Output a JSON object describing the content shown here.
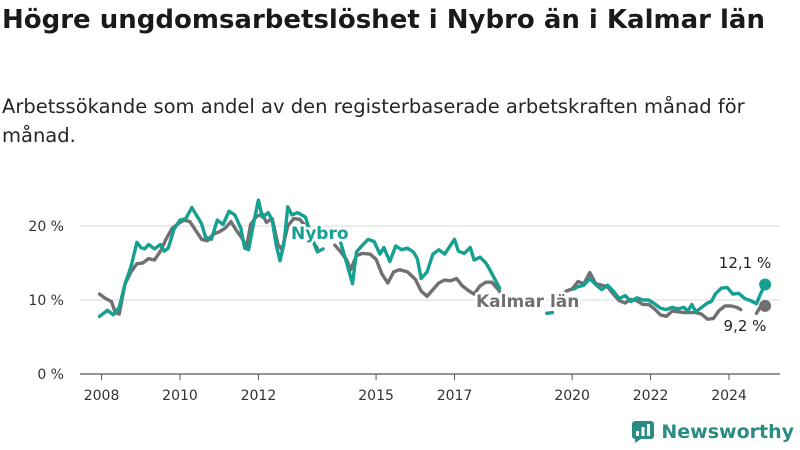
{
  "title": "Högre ungdomsarbetslöshet i Nybro än i Kalmar län",
  "subtitle": "Arbetssökande som andel av den registerbaserade arbetskraften månad för månad.",
  "brand": "Newsworthy",
  "colors": {
    "nybro": "#16a091",
    "kalmar": "#707070",
    "grid": "#d9d9d9",
    "axis": "#555555"
  },
  "chart_data": {
    "type": "line",
    "x_ticks": [
      "2008",
      "2010",
      "2012",
      "2015",
      "2017",
      "2020",
      "2022",
      "2024"
    ],
    "x_tick_values": [
      2008,
      2010,
      2012,
      2015,
      2017,
      2020,
      2022,
      2024
    ],
    "y_ticks": [
      "0 %",
      "10 %",
      "20 %"
    ],
    "y_tick_values": [
      0,
      10,
      20
    ],
    "xlim": [
      2007.45,
      2025.3
    ],
    "ylim": [
      0,
      20
    ],
    "grid": true,
    "series": [
      {
        "name": "Nybro",
        "end_label": "12,1 %",
        "points": [
          [
            2007.95,
            7.8
          ],
          [
            2008.15,
            8.6
          ],
          [
            2008.3,
            8.0
          ],
          [
            2008.45,
            9.0
          ],
          [
            2008.6,
            12.2
          ],
          [
            2008.75,
            14.5
          ],
          [
            2008.9,
            17.8
          ],
          [
            2009.0,
            17.1
          ],
          [
            2009.1,
            16.9
          ],
          [
            2009.2,
            17.5
          ],
          [
            2009.35,
            16.9
          ],
          [
            2009.5,
            17.5
          ],
          [
            2009.6,
            16.6
          ],
          [
            2009.7,
            17.0
          ],
          [
            2009.85,
            19.6
          ],
          [
            2010.0,
            20.8
          ],
          [
            2010.15,
            21.0
          ],
          [
            2010.3,
            22.5
          ],
          [
            2010.45,
            21.2
          ],
          [
            2010.55,
            20.3
          ],
          [
            2010.65,
            18.5
          ],
          [
            2010.8,
            18.2
          ],
          [
            2010.95,
            20.8
          ],
          [
            2011.1,
            20.2
          ],
          [
            2011.25,
            22.0
          ],
          [
            2011.4,
            21.5
          ],
          [
            2011.55,
            19.7
          ],
          [
            2011.65,
            17.0
          ],
          [
            2011.75,
            16.8
          ],
          [
            2011.9,
            21.0
          ],
          [
            2012.0,
            23.5
          ],
          [
            2012.1,
            21.2
          ],
          [
            2012.25,
            21.8
          ],
          [
            2012.35,
            20.8
          ],
          [
            2012.45,
            17.5
          ],
          [
            2012.55,
            15.3
          ],
          [
            2012.65,
            17.6
          ],
          [
            2012.75,
            22.6
          ],
          [
            2012.85,
            21.5
          ],
          [
            2013.0,
            21.8
          ],
          [
            2013.1,
            21.5
          ],
          [
            2013.2,
            21.2
          ],
          [
            2013.35,
            18.6
          ],
          [
            2013.5,
            16.5
          ],
          [
            2013.65,
            16.9
          ],
          null,
          [
            2014.1,
            17.7
          ],
          [
            2014.25,
            15.0
          ],
          [
            2014.4,
            12.2
          ],
          [
            2014.5,
            16.5
          ],
          [
            2014.65,
            17.4
          ],
          [
            2014.8,
            18.2
          ],
          [
            2014.95,
            17.9
          ],
          [
            2015.1,
            16.2
          ],
          [
            2015.2,
            17.1
          ],
          [
            2015.35,
            15.2
          ],
          [
            2015.5,
            17.3
          ],
          [
            2015.65,
            16.8
          ],
          [
            2015.8,
            17.0
          ],
          [
            2015.95,
            16.5
          ],
          [
            2016.05,
            15.6
          ],
          [
            2016.15,
            12.9
          ],
          [
            2016.3,
            13.8
          ],
          [
            2016.45,
            16.2
          ],
          [
            2016.6,
            16.8
          ],
          [
            2016.75,
            16.2
          ],
          [
            2016.9,
            17.4
          ],
          [
            2017.0,
            18.2
          ],
          [
            2017.1,
            16.6
          ],
          [
            2017.25,
            16.3
          ],
          [
            2017.4,
            17.1
          ],
          [
            2017.5,
            15.4
          ],
          [
            2017.65,
            15.8
          ],
          [
            2017.8,
            15.0
          ],
          [
            2017.9,
            14.1
          ],
          [
            2018.05,
            12.6
          ],
          [
            2018.15,
            11.6
          ],
          null,
          [
            2019.35,
            8.2
          ],
          [
            2019.5,
            8.3
          ],
          null,
          [
            2020.05,
            11.5
          ],
          [
            2020.15,
            11.8
          ],
          [
            2020.3,
            12.0
          ],
          [
            2020.45,
            12.9
          ],
          [
            2020.6,
            12.1
          ],
          [
            2020.75,
            11.4
          ],
          [
            2020.9,
            12.0
          ],
          [
            2021.05,
            11.2
          ],
          [
            2021.2,
            10.2
          ],
          [
            2021.35,
            10.6
          ],
          [
            2021.5,
            9.8
          ],
          [
            2021.65,
            10.3
          ],
          [
            2021.8,
            10.0
          ],
          [
            2021.95,
            10.0
          ],
          [
            2022.1,
            9.5
          ],
          [
            2022.25,
            8.9
          ],
          [
            2022.4,
            8.7
          ],
          [
            2022.55,
            9.0
          ],
          [
            2022.7,
            8.8
          ],
          [
            2022.85,
            9.0
          ],
          [
            2022.95,
            8.5
          ],
          [
            2023.05,
            9.4
          ],
          [
            2023.15,
            8.4
          ],
          [
            2023.3,
            9.0
          ],
          [
            2023.45,
            9.6
          ],
          [
            2023.55,
            9.8
          ],
          [
            2023.65,
            10.8
          ],
          [
            2023.8,
            11.6
          ],
          [
            2023.95,
            11.7
          ],
          [
            2024.1,
            10.8
          ],
          [
            2024.25,
            10.9
          ],
          [
            2024.4,
            10.2
          ],
          [
            2024.55,
            9.9
          ],
          [
            2024.7,
            9.5
          ],
          [
            2024.8,
            10.8
          ],
          [
            2024.92,
            12.1
          ]
        ]
      },
      {
        "name": "Kalmar län",
        "end_label": "9,2 %",
        "points": [
          [
            2007.95,
            10.8
          ],
          [
            2008.1,
            10.2
          ],
          [
            2008.25,
            9.8
          ],
          [
            2008.35,
            8.3
          ],
          [
            2008.45,
            8.1
          ],
          [
            2008.6,
            12.2
          ],
          [
            2008.75,
            13.8
          ],
          [
            2008.9,
            14.9
          ],
          [
            2009.05,
            15.0
          ],
          [
            2009.2,
            15.6
          ],
          [
            2009.35,
            15.4
          ],
          [
            2009.5,
            16.6
          ],
          [
            2009.65,
            18.3
          ],
          [
            2009.8,
            19.7
          ],
          [
            2009.95,
            20.3
          ],
          [
            2010.1,
            20.8
          ],
          [
            2010.25,
            20.6
          ],
          [
            2010.4,
            19.4
          ],
          [
            2010.55,
            18.2
          ],
          [
            2010.7,
            18.0
          ],
          [
            2010.85,
            18.9
          ],
          [
            2011.0,
            19.2
          ],
          [
            2011.15,
            19.7
          ],
          [
            2011.3,
            20.6
          ],
          [
            2011.45,
            19.3
          ],
          [
            2011.55,
            18.6
          ],
          [
            2011.7,
            17.2
          ],
          [
            2011.8,
            20.2
          ],
          [
            2011.95,
            21.3
          ],
          [
            2012.1,
            21.6
          ],
          [
            2012.2,
            20.5
          ],
          [
            2012.35,
            21.0
          ],
          [
            2012.5,
            17.5
          ],
          [
            2012.6,
            16.8
          ],
          [
            2012.75,
            20.0
          ],
          [
            2012.9,
            21.0
          ],
          [
            2013.05,
            20.9
          ],
          [
            2013.2,
            20.0
          ],
          [
            2013.35,
            18.1
          ],
          [
            2013.5,
            17.0
          ],
          null,
          [
            2013.95,
            17.4
          ],
          [
            2014.1,
            16.5
          ],
          [
            2014.25,
            15.4
          ],
          [
            2014.35,
            14.1
          ],
          [
            2014.5,
            16.0
          ],
          [
            2014.65,
            16.3
          ],
          [
            2014.85,
            16.2
          ],
          [
            2015.0,
            15.5
          ],
          [
            2015.15,
            13.5
          ],
          [
            2015.3,
            12.3
          ],
          [
            2015.45,
            13.8
          ],
          [
            2015.6,
            14.1
          ],
          [
            2015.8,
            13.8
          ],
          [
            2016.0,
            12.8
          ],
          [
            2016.15,
            11.2
          ],
          [
            2016.3,
            10.5
          ],
          [
            2016.45,
            11.4
          ],
          [
            2016.6,
            12.3
          ],
          [
            2016.75,
            12.7
          ],
          [
            2016.9,
            12.6
          ],
          [
            2017.05,
            12.9
          ],
          [
            2017.2,
            11.9
          ],
          [
            2017.35,
            11.3
          ],
          [
            2017.5,
            10.8
          ],
          [
            2017.65,
            11.9
          ],
          [
            2017.8,
            12.4
          ],
          [
            2017.95,
            12.4
          ],
          [
            2018.1,
            11.5
          ],
          [
            2018.2,
            10.8
          ],
          null,
          [
            2019.6,
            10.3
          ],
          [
            2019.85,
            11.2
          ],
          [
            2020.0,
            11.5
          ],
          [
            2020.15,
            12.5
          ],
          [
            2020.3,
            12.2
          ],
          [
            2020.45,
            13.7
          ],
          [
            2020.6,
            12.2
          ],
          [
            2020.75,
            12.0
          ],
          [
            2020.9,
            11.8
          ],
          [
            2021.05,
            10.8
          ],
          [
            2021.2,
            9.9
          ],
          [
            2021.35,
            9.6
          ],
          [
            2021.5,
            10.1
          ],
          [
            2021.65,
            9.9
          ],
          [
            2021.8,
            9.4
          ],
          [
            2021.95,
            9.4
          ],
          [
            2022.1,
            8.8
          ],
          [
            2022.25,
            8.0
          ],
          [
            2022.4,
            7.8
          ],
          [
            2022.55,
            8.5
          ],
          [
            2022.7,
            8.4
          ],
          [
            2022.85,
            8.3
          ],
          [
            2023.0,
            8.3
          ],
          [
            2023.15,
            8.3
          ],
          [
            2023.3,
            8.1
          ],
          [
            2023.45,
            7.4
          ],
          [
            2023.6,
            7.5
          ],
          [
            2023.75,
            8.6
          ],
          [
            2023.9,
            9.2
          ],
          [
            2024.05,
            9.2
          ],
          [
            2024.2,
            9.0
          ],
          [
            2024.3,
            8.7
          ],
          null,
          [
            2024.7,
            8.2
          ],
          [
            2024.8,
            9.1
          ],
          [
            2024.92,
            9.2
          ]
        ]
      }
    ],
    "inline_labels": [
      "Nybro",
      "Kalmar län"
    ]
  }
}
